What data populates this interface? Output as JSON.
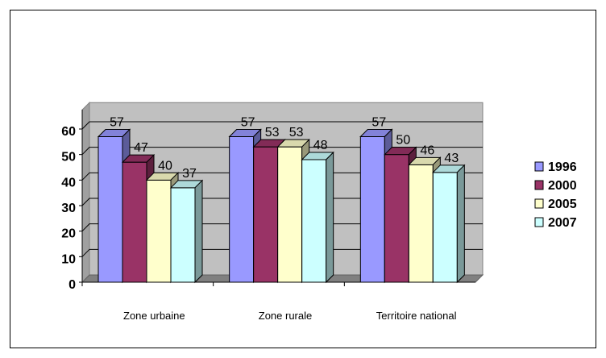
{
  "chart_data": {
    "type": "bar",
    "style": "3d-clustered-column",
    "categories": [
      "Zone urbaine",
      "Zone rurale",
      "Territoire national"
    ],
    "series": [
      {
        "name": "1996",
        "values": [
          57,
          57,
          57
        ],
        "color": "#9999ff"
      },
      {
        "name": "2000",
        "values": [
          47,
          53,
          50
        ],
        "color": "#993366"
      },
      {
        "name": "2005",
        "values": [
          40,
          53,
          46
        ],
        "color": "#ffffcc"
      },
      {
        "name": "2007",
        "values": [
          37,
          48,
          43
        ],
        "color": "#ccffff"
      }
    ],
    "y_ticks": [
      0,
      10,
      20,
      30,
      40,
      50,
      60
    ],
    "ylim": [
      0,
      60
    ],
    "wall_color": "#c0c0c0",
    "grid": true,
    "legend": "right"
  }
}
